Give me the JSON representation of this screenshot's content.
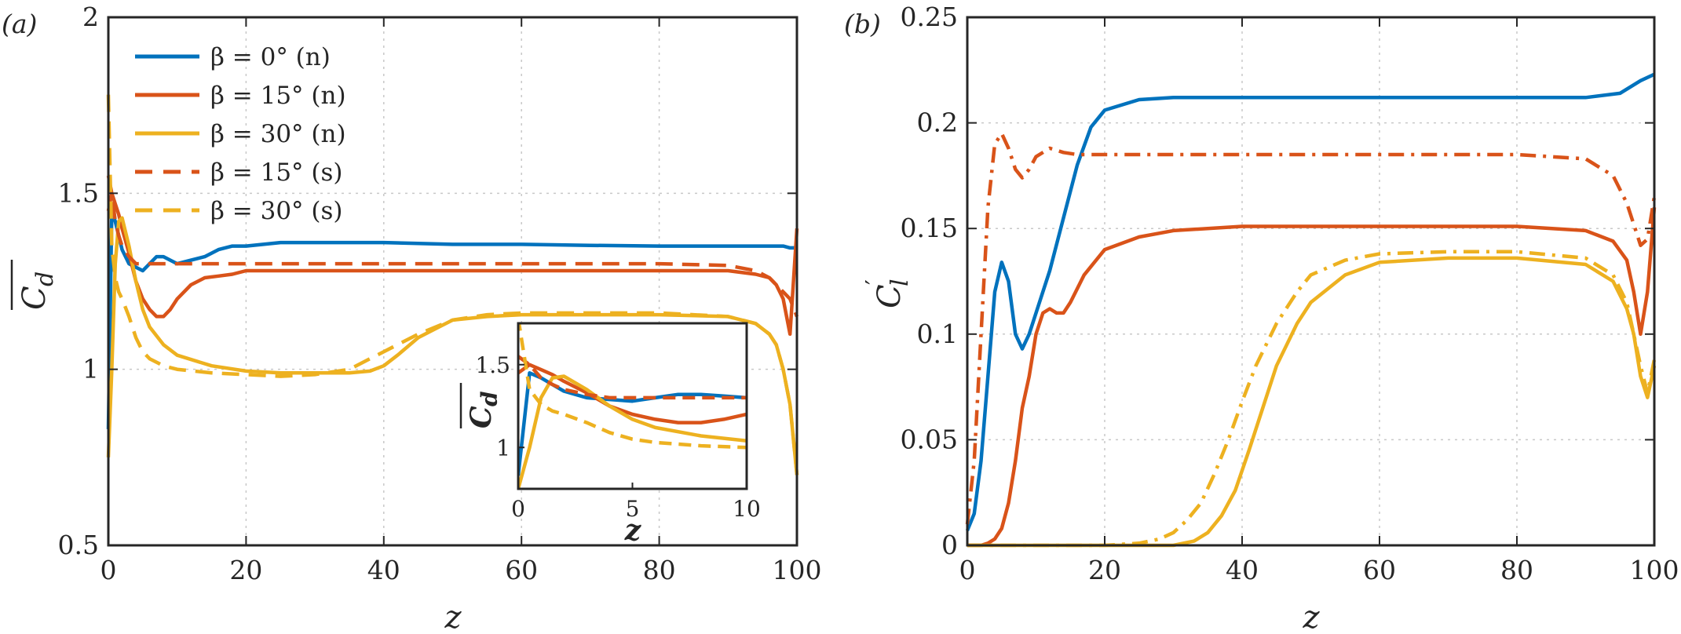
{
  "colors": {
    "blue": "#0072BD",
    "red": "#D95319",
    "yellow": "#EDB120",
    "axis": "#262626",
    "grid": "#c8c8c8"
  },
  "chart_data": [
    {
      "type": "line",
      "panel_label": "(a)",
      "xlabel": "z",
      "ylabel": "C_d (mean)",
      "xlim": [
        0,
        100
      ],
      "ylim": [
        0.5,
        2
      ],
      "xticks": [
        0,
        20,
        40,
        60,
        80,
        100
      ],
      "xtick_labels": [
        "0",
        "20",
        "40",
        "60",
        "80",
        "100"
      ],
      "yticks": [
        0.5,
        1,
        1.5,
        2
      ],
      "ytick_labels": [
        "0.5",
        "1",
        "1.5",
        "2"
      ],
      "grid": true,
      "legend_position": "top-left",
      "legend": [
        {
          "label": "β = 0° (n)",
          "color": "blue",
          "dash": "solid"
        },
        {
          "label": "β = 15° (n)",
          "color": "red",
          "dash": "solid"
        },
        {
          "label": "β = 30° (n)",
          "color": "yellow",
          "dash": "solid"
        },
        {
          "label": "β = 15° (s)",
          "color": "red",
          "dash": "dashed"
        },
        {
          "label": "β = 30° (s)",
          "color": "yellow",
          "dash": "dashed"
        }
      ],
      "series": [
        {
          "name": "β = 0° (n)",
          "color": "blue",
          "dash": "solid",
          "x": [
            0,
            0.5,
            1,
            1.5,
            2,
            3,
            4,
            5,
            6,
            7,
            8,
            9,
            10,
            12,
            14,
            16,
            18,
            20,
            25,
            30,
            40,
            50,
            60,
            70,
            80,
            90,
            95,
            98,
            99,
            100
          ],
          "y": [
            0.83,
            1.45,
            1.42,
            1.38,
            1.34,
            1.3,
            1.29,
            1.28,
            1.3,
            1.32,
            1.32,
            1.31,
            1.3,
            1.31,
            1.32,
            1.34,
            1.35,
            1.35,
            1.36,
            1.36,
            1.36,
            1.355,
            1.355,
            1.352,
            1.35,
            1.35,
            1.35,
            1.35,
            1.345,
            1.345
          ]
        },
        {
          "name": "β = 15° (n)",
          "color": "red",
          "dash": "solid",
          "x": [
            0,
            0.5,
            1,
            1.5,
            2,
            3,
            4,
            5,
            6,
            7,
            8,
            9,
            10,
            12,
            14,
            16,
            18,
            20,
            25,
            30,
            40,
            50,
            60,
            70,
            80,
            90,
            94,
            96,
            97,
            98,
            99,
            100
          ],
          "y": [
            1.45,
            1.5,
            1.47,
            1.44,
            1.4,
            1.33,
            1.25,
            1.2,
            1.17,
            1.15,
            1.15,
            1.17,
            1.2,
            1.24,
            1.26,
            1.265,
            1.27,
            1.28,
            1.28,
            1.28,
            1.28,
            1.28,
            1.28,
            1.28,
            1.28,
            1.28,
            1.27,
            1.26,
            1.24,
            1.2,
            1.1,
            1.4
          ]
        },
        {
          "name": "β = 30° (n)",
          "color": "yellow",
          "dash": "solid",
          "x": [
            0,
            0.5,
            1,
            1.5,
            2,
            3,
            4,
            5,
            6,
            8,
            10,
            15,
            20,
            25,
            30,
            35,
            38,
            40,
            42,
            45,
            48,
            50,
            55,
            60,
            70,
            80,
            90,
            94,
            96,
            97,
            98,
            99,
            100
          ],
          "y": [
            0.75,
            1.0,
            1.3,
            1.42,
            1.43,
            1.35,
            1.25,
            1.17,
            1.12,
            1.07,
            1.04,
            1.01,
            0.995,
            0.99,
            0.99,
            0.99,
            0.995,
            1.01,
            1.04,
            1.09,
            1.12,
            1.14,
            1.15,
            1.155,
            1.155,
            1.155,
            1.15,
            1.13,
            1.1,
            1.07,
            1.0,
            0.9,
            0.7
          ]
        },
        {
          "name": "β = 15° (s)",
          "color": "red",
          "dash": "dashed",
          "x": [
            0,
            0.5,
            1,
            1.5,
            2,
            3,
            4,
            5,
            6,
            8,
            10,
            15,
            20,
            40,
            60,
            80,
            90,
            94,
            96,
            97,
            98,
            99,
            100
          ],
          "y": [
            1.55,
            1.5,
            1.42,
            1.38,
            1.35,
            1.32,
            1.3,
            1.3,
            1.3,
            1.3,
            1.3,
            1.3,
            1.3,
            1.3,
            1.3,
            1.3,
            1.295,
            1.28,
            1.26,
            1.24,
            1.22,
            1.2,
            1.15
          ]
        },
        {
          "name": "β = 30° (s)",
          "color": "yellow",
          "dash": "dashed",
          "x": [
            0,
            0.5,
            1,
            1.5,
            2,
            3,
            4,
            5,
            6,
            8,
            10,
            15,
            20,
            25,
            30,
            35,
            40,
            45,
            50,
            55,
            60,
            80,
            90,
            94,
            96,
            97,
            98,
            99,
            100
          ],
          "y": [
            1.78,
            1.35,
            1.26,
            1.22,
            1.2,
            1.15,
            1.09,
            1.05,
            1.03,
            1.01,
            1.0,
            0.99,
            0.985,
            0.98,
            0.985,
            1.0,
            1.05,
            1.1,
            1.14,
            1.155,
            1.16,
            1.16,
            1.15,
            1.13,
            1.1,
            1.07,
            1.0,
            0.9,
            0.7
          ]
        }
      ],
      "inset": {
        "xlabel": "z",
        "ylabel": "C_d (mean)",
        "xlim": [
          0,
          10
        ],
        "ylim": [
          0.75,
          1.75
        ],
        "xticks": [
          0,
          5,
          10
        ],
        "xtick_labels": [
          "0",
          "5",
          "10"
        ],
        "yticks": [
          1,
          1.5
        ],
        "ytick_labels": [
          "1",
          "1.5"
        ]
      }
    },
    {
      "type": "line",
      "panel_label": "(b)",
      "xlabel": "z",
      "ylabel": "C_l'",
      "xlim": [
        0,
        100
      ],
      "ylim": [
        0,
        0.25
      ],
      "xticks": [
        0,
        20,
        40,
        60,
        80,
        100
      ],
      "xtick_labels": [
        "0",
        "20",
        "40",
        "60",
        "80",
        "100"
      ],
      "yticks": [
        0,
        0.05,
        0.1,
        0.15,
        0.2,
        0.25
      ],
      "ytick_labels": [
        "0",
        "0.05",
        "0.1",
        "0.15",
        "0.2",
        "0.25"
      ],
      "grid": true,
      "series": [
        {
          "name": "β = 0° (n)",
          "color": "blue",
          "dash": "solid",
          "x": [
            0,
            1,
            2,
            3,
            4,
            5,
            6,
            7,
            8,
            9,
            10,
            12,
            14,
            16,
            18,
            20,
            25,
            30,
            40,
            50,
            60,
            70,
            80,
            90,
            95,
            98,
            100
          ],
          "y": [
            0.007,
            0.015,
            0.04,
            0.08,
            0.12,
            0.134,
            0.125,
            0.1,
            0.093,
            0.1,
            0.11,
            0.13,
            0.155,
            0.18,
            0.198,
            0.206,
            0.211,
            0.212,
            0.212,
            0.212,
            0.212,
            0.212,
            0.212,
            0.212,
            0.214,
            0.22,
            0.223
          ]
        },
        {
          "name": "β = 15° (n)",
          "color": "red",
          "dash": "solid",
          "x": [
            0,
            2,
            3,
            4,
            5,
            6,
            7,
            8,
            9,
            10,
            11,
            12,
            13,
            14,
            15,
            17,
            20,
            25,
            30,
            40,
            60,
            80,
            90,
            94,
            96,
            97,
            98,
            99,
            100
          ],
          "y": [
            0,
            0.0,
            0.001,
            0.003,
            0.008,
            0.02,
            0.04,
            0.065,
            0.08,
            0.1,
            0.11,
            0.112,
            0.11,
            0.11,
            0.115,
            0.128,
            0.14,
            0.146,
            0.149,
            0.151,
            0.151,
            0.151,
            0.149,
            0.144,
            0.135,
            0.12,
            0.1,
            0.12,
            0.16
          ]
        },
        {
          "name": "β = 30° (n)",
          "color": "yellow",
          "dash": "solid",
          "x": [
            0,
            20,
            30,
            33,
            35,
            37,
            39,
            41,
            43,
            45,
            48,
            50,
            55,
            60,
            70,
            80,
            90,
            94,
            96,
            97,
            98,
            99,
            100
          ],
          "y": [
            0,
            0,
            0.0,
            0.002,
            0.006,
            0.014,
            0.026,
            0.045,
            0.065,
            0.085,
            0.105,
            0.115,
            0.128,
            0.134,
            0.136,
            0.136,
            0.133,
            0.125,
            0.112,
            0.1,
            0.08,
            0.07,
            0.085
          ]
        },
        {
          "name": "β = 15° (s)",
          "color": "red",
          "dash": "dashdot",
          "x": [
            0,
            1,
            2,
            3,
            4,
            5,
            6,
            7,
            8,
            9,
            10,
            12,
            14,
            16,
            20,
            30,
            40,
            60,
            80,
            90,
            94,
            96,
            97,
            98,
            99,
            100
          ],
          "y": [
            0.01,
            0.04,
            0.1,
            0.16,
            0.19,
            0.195,
            0.188,
            0.178,
            0.174,
            0.178,
            0.184,
            0.188,
            0.186,
            0.185,
            0.185,
            0.185,
            0.185,
            0.185,
            0.185,
            0.183,
            0.175,
            0.162,
            0.152,
            0.142,
            0.145,
            0.165
          ]
        },
        {
          "name": "β = 30° (s)",
          "color": "yellow",
          "dash": "dashdot",
          "x": [
            0,
            20,
            25,
            28,
            30,
            32,
            34,
            36,
            38,
            40,
            42,
            45,
            48,
            50,
            55,
            60,
            70,
            80,
            90,
            94,
            96,
            97,
            98,
            99,
            100
          ],
          "y": [
            0,
            0,
            0.001,
            0.003,
            0.006,
            0.012,
            0.02,
            0.034,
            0.05,
            0.068,
            0.085,
            0.105,
            0.12,
            0.128,
            0.135,
            0.138,
            0.139,
            0.139,
            0.136,
            0.128,
            0.115,
            0.1,
            0.085,
            0.072,
            0.088
          ]
        }
      ]
    }
  ]
}
